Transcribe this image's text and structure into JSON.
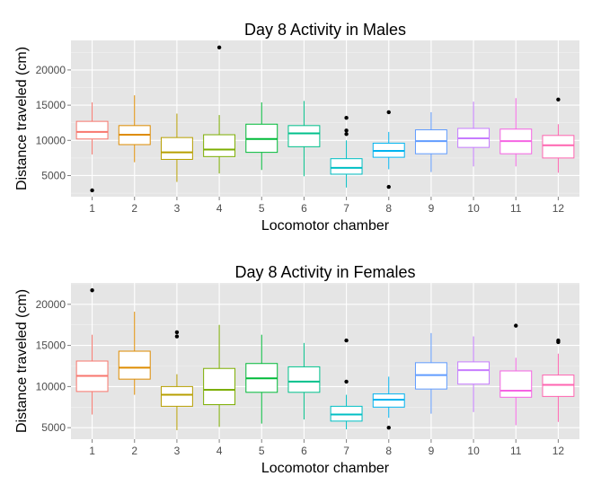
{
  "chart_data": [
    {
      "type": "boxplot",
      "title": "Day 8 Activity in Males",
      "xlabel": "Locomotor chamber",
      "ylabel": "Distance traveled (cm)",
      "ylim": [
        2000,
        24200
      ],
      "yticks": [
        5000,
        10000,
        15000,
        20000
      ],
      "ytick_labels": [
        "5000",
        "10000",
        "15000",
        "20000"
      ],
      "categories": [
        "1",
        "2",
        "3",
        "4",
        "5",
        "6",
        "7",
        "8",
        "9",
        "10",
        "11",
        "12"
      ],
      "colors": [
        "#F8766D",
        "#DE8C00",
        "#B79F00",
        "#7CAE00",
        "#00BA38",
        "#00C08B",
        "#00BFC4",
        "#00B4F0",
        "#619CFF",
        "#C77CFF",
        "#F564E3",
        "#FF64B0"
      ],
      "boxes": [
        {
          "whisker_low": 8000,
          "q1": 10200,
          "median": 11200,
          "q3": 12700,
          "whisker_high": 15400,
          "outliers": [
            2900
          ]
        },
        {
          "whisker_low": 6900,
          "q1": 9400,
          "median": 10800,
          "q3": 12100,
          "whisker_high": 16400,
          "outliers": []
        },
        {
          "whisker_low": 4100,
          "q1": 7300,
          "median": 8300,
          "q3": 10400,
          "whisker_high": 13800,
          "outliers": []
        },
        {
          "whisker_low": 5300,
          "q1": 7700,
          "median": 8700,
          "q3": 10800,
          "whisker_high": 13600,
          "outliers": [
            23200
          ]
        },
        {
          "whisker_low": 5800,
          "q1": 8300,
          "median": 10200,
          "q3": 12300,
          "whisker_high": 15400,
          "outliers": []
        },
        {
          "whisker_low": 4900,
          "q1": 9100,
          "median": 11000,
          "q3": 12100,
          "whisker_high": 15600,
          "outliers": []
        },
        {
          "whisker_low": 3300,
          "q1": 5200,
          "median": 6100,
          "q3": 7400,
          "whisker_high": 10000,
          "outliers": [
            13200,
            11400,
            10900
          ]
        },
        {
          "whisker_low": 5900,
          "q1": 7600,
          "median": 8500,
          "q3": 9600,
          "whisker_high": 11200,
          "outliers": [
            14000,
            3400
          ]
        },
        {
          "whisker_low": 5500,
          "q1": 8100,
          "median": 9900,
          "q3": 11500,
          "whisker_high": 14000,
          "outliers": []
        },
        {
          "whisker_low": 6300,
          "q1": 9000,
          "median": 10300,
          "q3": 11700,
          "whisker_high": 15500,
          "outliers": []
        },
        {
          "whisker_low": 6300,
          "q1": 8100,
          "median": 9900,
          "q3": 11600,
          "whisker_high": 16000,
          "outliers": []
        },
        {
          "whisker_low": 5400,
          "q1": 7500,
          "median": 9300,
          "q3": 10700,
          "whisker_high": 12300,
          "outliers": [
            15800
          ]
        }
      ]
    },
    {
      "type": "boxplot",
      "title": "Day 8 Activity in Females",
      "xlabel": "Locomotor chamber",
      "ylabel": "Distance traveled (cm)",
      "ylim": [
        3600,
        22600
      ],
      "yticks": [
        5000,
        10000,
        15000,
        20000
      ],
      "ytick_labels": [
        "5000",
        "10000",
        "15000",
        "20000"
      ],
      "categories": [
        "1",
        "2",
        "3",
        "4",
        "5",
        "6",
        "7",
        "8",
        "9",
        "10",
        "11",
        "12"
      ],
      "colors": [
        "#F8766D",
        "#DE8C00",
        "#B79F00",
        "#7CAE00",
        "#00BA38",
        "#00C08B",
        "#00BFC4",
        "#00B4F0",
        "#619CFF",
        "#C77CFF",
        "#F564E3",
        "#FF64B0"
      ],
      "boxes": [
        {
          "whisker_low": 6600,
          "q1": 9400,
          "median": 11300,
          "q3": 13100,
          "whisker_high": 16300,
          "outliers": [
            21700
          ]
        },
        {
          "whisker_low": 9000,
          "q1": 10900,
          "median": 12300,
          "q3": 14300,
          "whisker_high": 19100,
          "outliers": []
        },
        {
          "whisker_low": 4700,
          "q1": 7600,
          "median": 9000,
          "q3": 10000,
          "whisker_high": 11500,
          "outliers": [
            16600,
            16100
          ]
        },
        {
          "whisker_low": 5100,
          "q1": 7800,
          "median": 9600,
          "q3": 12200,
          "whisker_high": 17500,
          "outliers": []
        },
        {
          "whisker_low": 5500,
          "q1": 9300,
          "median": 11000,
          "q3": 12800,
          "whisker_high": 16300,
          "outliers": []
        },
        {
          "whisker_low": 6000,
          "q1": 9300,
          "median": 10600,
          "q3": 12400,
          "whisker_high": 15300,
          "outliers": []
        },
        {
          "whisker_low": 4800,
          "q1": 5800,
          "median": 6600,
          "q3": 7600,
          "whisker_high": 9000,
          "outliers": [
            15600,
            10600
          ]
        },
        {
          "whisker_low": 6200,
          "q1": 7500,
          "median": 8400,
          "q3": 9100,
          "whisker_high": 11200,
          "outliers": [
            5000
          ]
        },
        {
          "whisker_low": 6700,
          "q1": 9700,
          "median": 11400,
          "q3": 12900,
          "whisker_high": 16500,
          "outliers": []
        },
        {
          "whisker_low": 6900,
          "q1": 10300,
          "median": 12000,
          "q3": 13000,
          "whisker_high": 16100,
          "outliers": []
        },
        {
          "whisker_low": 5300,
          "q1": 8700,
          "median": 9500,
          "q3": 11900,
          "whisker_high": 13500,
          "outliers": [
            17400
          ]
        },
        {
          "whisker_low": 5700,
          "q1": 8800,
          "median": 10200,
          "q3": 11400,
          "whisker_high": 14000,
          "outliers": [
            15600,
            15400
          ]
        }
      ]
    }
  ]
}
